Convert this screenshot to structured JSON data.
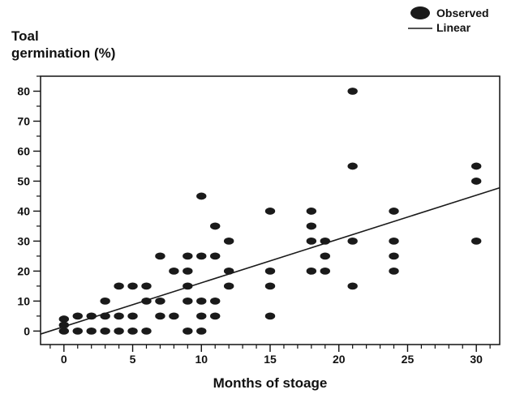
{
  "chart_data": {
    "type": "scatter",
    "title": "",
    "ylabel_lines": [
      "Toal",
      "germination (%)"
    ],
    "xlabel": "Months of stoage",
    "xlim": [
      -1.7,
      31.7
    ],
    "ylim": [
      -4.5,
      85
    ],
    "xticks": [
      0,
      5,
      10,
      15,
      20,
      25,
      30
    ],
    "yticks": [
      0,
      10,
      20,
      30,
      40,
      50,
      60,
      70,
      80
    ],
    "x_minor_step": 1,
    "y_minor_step": 5,
    "grid": false,
    "legend_position": "top-right",
    "legend": [
      {
        "label": "Observed",
        "marker": "ellipse"
      },
      {
        "label": "Linear",
        "marker": "line"
      }
    ],
    "series": [
      {
        "name": "Observed",
        "points": [
          [
            0,
            0
          ],
          [
            0,
            2
          ],
          [
            0,
            4
          ],
          [
            1,
            0
          ],
          [
            1,
            5
          ],
          [
            2,
            0
          ],
          [
            2,
            5
          ],
          [
            3,
            0
          ],
          [
            3,
            5
          ],
          [
            3,
            10
          ],
          [
            4,
            0
          ],
          [
            4,
            5
          ],
          [
            4,
            15
          ],
          [
            5,
            0
          ],
          [
            5,
            5
          ],
          [
            5,
            15
          ],
          [
            6,
            0
          ],
          [
            6,
            10
          ],
          [
            6,
            15
          ],
          [
            7,
            5
          ],
          [
            7,
            10
          ],
          [
            7,
            25
          ],
          [
            8,
            5
          ],
          [
            8,
            20
          ],
          [
            9,
            0
          ],
          [
            9,
            10
          ],
          [
            9,
            15
          ],
          [
            9,
            20
          ],
          [
            9,
            25
          ],
          [
            10,
            0
          ],
          [
            10,
            5
          ],
          [
            10,
            10
          ],
          [
            10,
            25
          ],
          [
            10,
            45
          ],
          [
            11,
            5
          ],
          [
            11,
            10
          ],
          [
            11,
            25
          ],
          [
            11,
            35
          ],
          [
            12,
            15
          ],
          [
            12,
            20
          ],
          [
            12,
            30
          ],
          [
            15,
            5
          ],
          [
            15,
            15
          ],
          [
            15,
            20
          ],
          [
            15,
            40
          ],
          [
            18,
            20
          ],
          [
            18,
            30
          ],
          [
            18,
            35
          ],
          [
            18,
            40
          ],
          [
            19,
            20
          ],
          [
            19,
            25
          ],
          [
            19,
            30
          ],
          [
            21,
            15
          ],
          [
            21,
            30
          ],
          [
            21,
            55
          ],
          [
            21,
            80
          ],
          [
            24,
            20
          ],
          [
            24,
            25
          ],
          [
            24,
            30
          ],
          [
            24,
            40
          ],
          [
            30,
            30
          ],
          [
            30,
            50
          ],
          [
            30,
            55
          ]
        ]
      },
      {
        "name": "Linear",
        "line": [
          [
            -1.7,
            -1.0
          ],
          [
            31.7,
            47.8
          ]
        ]
      }
    ],
    "colors": {
      "marker": "#1a1a1a",
      "line": "#1a1a1a",
      "axis": "#111111",
      "background": "#ffffff"
    }
  }
}
